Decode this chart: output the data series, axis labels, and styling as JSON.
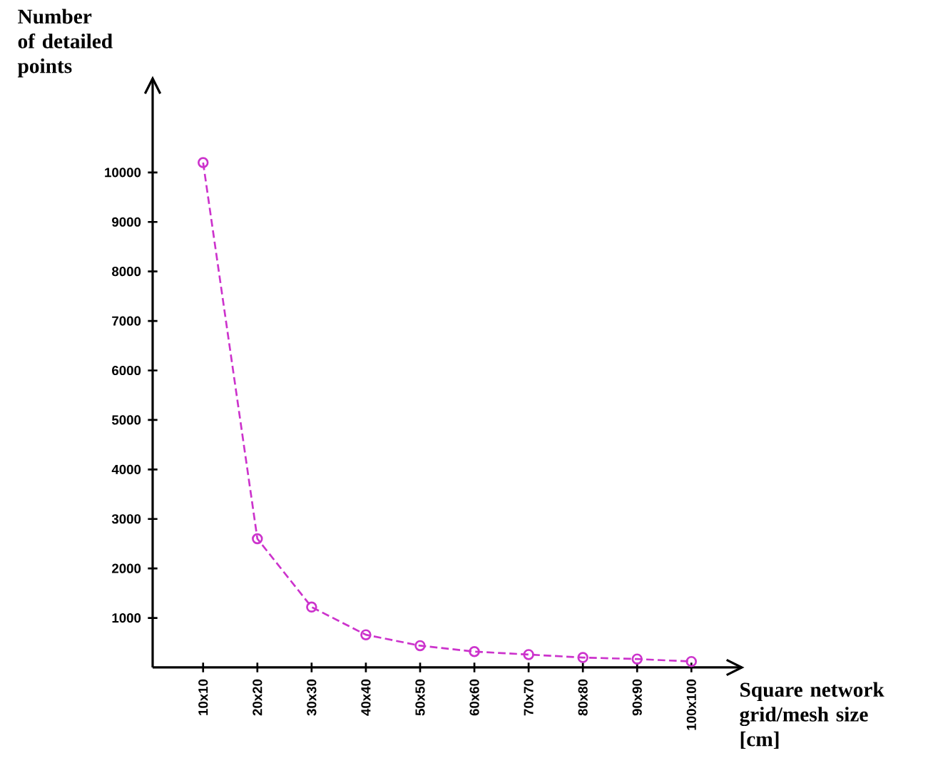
{
  "chart_data": {
    "type": "line",
    "xlabel": "Square network grid/mesh size [cm]",
    "ylabel": "Number of detailed points",
    "categories": [
      "10x10",
      "20x20",
      "30x30",
      "40x40",
      "50x50",
      "60x60",
      "70x70",
      "80x80",
      "90x90",
      "100x100"
    ],
    "series": [
      {
        "color": "#cc33cc",
        "values": [
          10200,
          2600,
          1220,
          660,
          440,
          320,
          260,
          200,
          170,
          120
        ]
      }
    ],
    "ylim": [
      0,
      11900
    ],
    "yticks": [
      1000,
      2000,
      3000,
      4000,
      5000,
      6000,
      7000,
      8000,
      9000,
      10000
    ],
    "marker": "circle",
    "line_style": "dashed",
    "grid": false
  }
}
